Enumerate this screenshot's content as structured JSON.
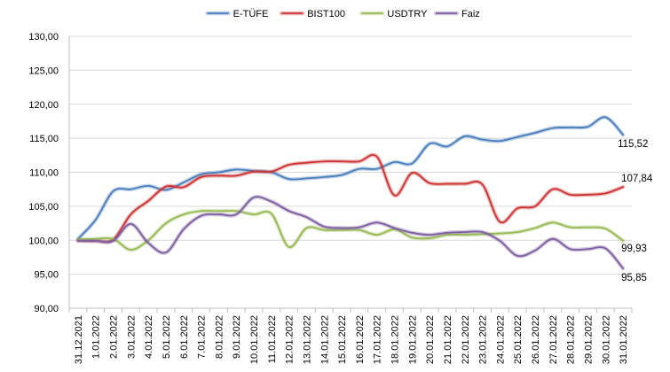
{
  "chart_data": {
    "type": "line",
    "title": "",
    "xlabel": "",
    "ylabel": "",
    "ylim": [
      90,
      130
    ],
    "yticks": [
      "90,00",
      "95,00",
      "100,00",
      "105,00",
      "110,00",
      "115,00",
      "120,00",
      "125,00",
      "130,00"
    ],
    "ytick_values": [
      90,
      95,
      100,
      105,
      110,
      115,
      120,
      125,
      130
    ],
    "grid": "horizontal",
    "legend": "top-center",
    "categories": [
      "31.12.2021",
      "1.01.2022",
      "2.01.2022",
      "3.01.2022",
      "4.01.2022",
      "5.01.2022",
      "6.01.2022",
      "7.01.2022",
      "8.01.2022",
      "9.01.2022",
      "10.01.2022",
      "11.01.2022",
      "12.01.2022",
      "13.01.2022",
      "14.01.2022",
      "15.01.2022",
      "16.01.2022",
      "17.01.2022",
      "18.01.2022",
      "19.01.2022",
      "20.01.2022",
      "21.01.2022",
      "22.01.2022",
      "23.01.2022",
      "24.01.2022",
      "25.01.2022",
      "26.01.2022",
      "27.01.2022",
      "28.01.2022",
      "29.01.2022",
      "30.01.2022",
      "31.01.2022"
    ],
    "series": [
      {
        "name": "E-TÜFE",
        "color": "#4a7ebb",
        "values": [
          100.2,
          103.0,
          107.2,
          107.5,
          108.0,
          107.4,
          108.5,
          109.7,
          110.0,
          110.4,
          110.2,
          110.0,
          109.0,
          109.1,
          109.3,
          109.6,
          110.5,
          110.5,
          111.5,
          111.3,
          114.2,
          113.8,
          115.3,
          114.8,
          114.6,
          115.2,
          115.8,
          116.5,
          116.6,
          116.7,
          118.1,
          115.52
        ],
        "end_label": "115,52"
      },
      {
        "name": "BIST100",
        "color": "#cc3333",
        "values": [
          100.0,
          99.9,
          100.1,
          103.8,
          105.8,
          107.9,
          107.8,
          109.3,
          109.5,
          109.5,
          110.1,
          110.1,
          111.1,
          111.4,
          111.6,
          111.6,
          111.6,
          112.3,
          106.6,
          109.9,
          108.4,
          108.3,
          108.3,
          108.2,
          102.7,
          104.7,
          105.0,
          107.5,
          106.7,
          106.7,
          106.9,
          107.84
        ],
        "end_label": "107,84"
      },
      {
        "name": "USDTRY",
        "color": "#98b954",
        "values": [
          100.1,
          100.2,
          100.2,
          98.6,
          100.0,
          102.5,
          103.8,
          104.3,
          104.3,
          104.3,
          103.8,
          103.9,
          99.0,
          101.8,
          101.5,
          101.5,
          101.5,
          100.8,
          101.6,
          100.4,
          100.3,
          100.8,
          100.8,
          100.9,
          101.0,
          101.2,
          101.8,
          102.6,
          101.9,
          101.9,
          101.7,
          99.93
        ],
        "end_label": "99,93"
      },
      {
        "name": "Faiz",
        "color": "#7d5fa0",
        "values": [
          99.9,
          99.9,
          99.9,
          102.4,
          99.6,
          98.2,
          101.6,
          103.6,
          103.8,
          103.8,
          106.3,
          105.7,
          104.3,
          103.4,
          102.0,
          101.8,
          101.9,
          102.6,
          101.8,
          101.1,
          100.8,
          101.1,
          101.2,
          101.2,
          99.9,
          97.7,
          98.5,
          100.2,
          98.7,
          98.7,
          98.8,
          95.85
        ],
        "end_label": "95,85"
      }
    ]
  }
}
